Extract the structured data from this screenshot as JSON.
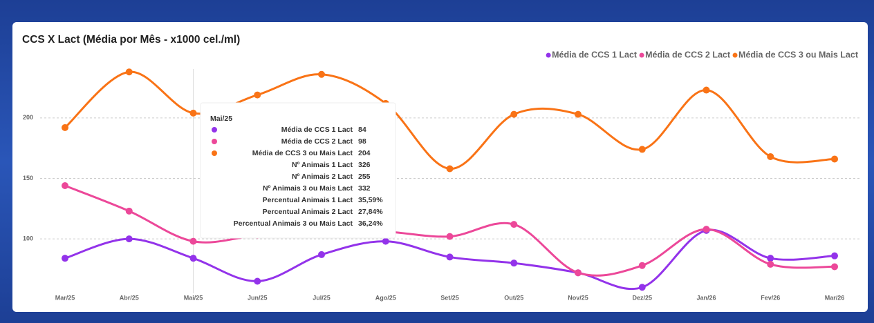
{
  "chart_data": {
    "type": "line",
    "title": "CCS X Lact (Média por Mês - x1000 cel./ml)",
    "categories": [
      "Mar/25",
      "Abr/25",
      "Mai/25",
      "Jun/25",
      "Jul/25",
      "Ago/25",
      "Set/25",
      "Out/25",
      "Nov/25",
      "Dez/25",
      "Jan/26",
      "Fev/26",
      "Mar/26"
    ],
    "series": [
      {
        "name": "Média de CCS 1 Lact",
        "color": "#9333ea",
        "values": [
          84,
          100,
          84,
          65,
          87,
          98,
          85,
          80,
          72,
          60,
          107,
          84,
          86
        ]
      },
      {
        "name": "Média de CCS 2 Lact",
        "color": "#ec4899",
        "values": [
          144,
          123,
          98,
          103,
          107,
          106,
          102,
          112,
          72,
          78,
          108,
          79,
          77
        ]
      },
      {
        "name": "Média de CCS 3 ou Mais Lact",
        "color": "#f97316",
        "values": [
          192,
          238,
          204,
          219,
          236,
          212,
          158,
          203,
          203,
          174,
          223,
          168,
          166
        ]
      }
    ],
    "ylim": [
      55,
      245
    ],
    "yticks": [
      100,
      150,
      200
    ],
    "grid": true,
    "legend": "top-right",
    "tooltip": {
      "rows": [
        {
          "label": "Nº Animais 1 Lact",
          "value": 326
        },
        {
          "label": "Nº Animais 2 Lact",
          "value": 255
        },
        {
          "label": "Nº Animais 3 ou Mais Lact",
          "value": 332
        },
        {
          "label": "Percentual Animais 1 Lact",
          "value": "35,59%"
        },
        {
          "label": "Percentual Animais 2 Lact",
          "value": "27,84%"
        },
        {
          "label": "Percentual Animais 3 ou Mais Lact",
          "value": "36,24%"
        }
      ]
    }
  }
}
